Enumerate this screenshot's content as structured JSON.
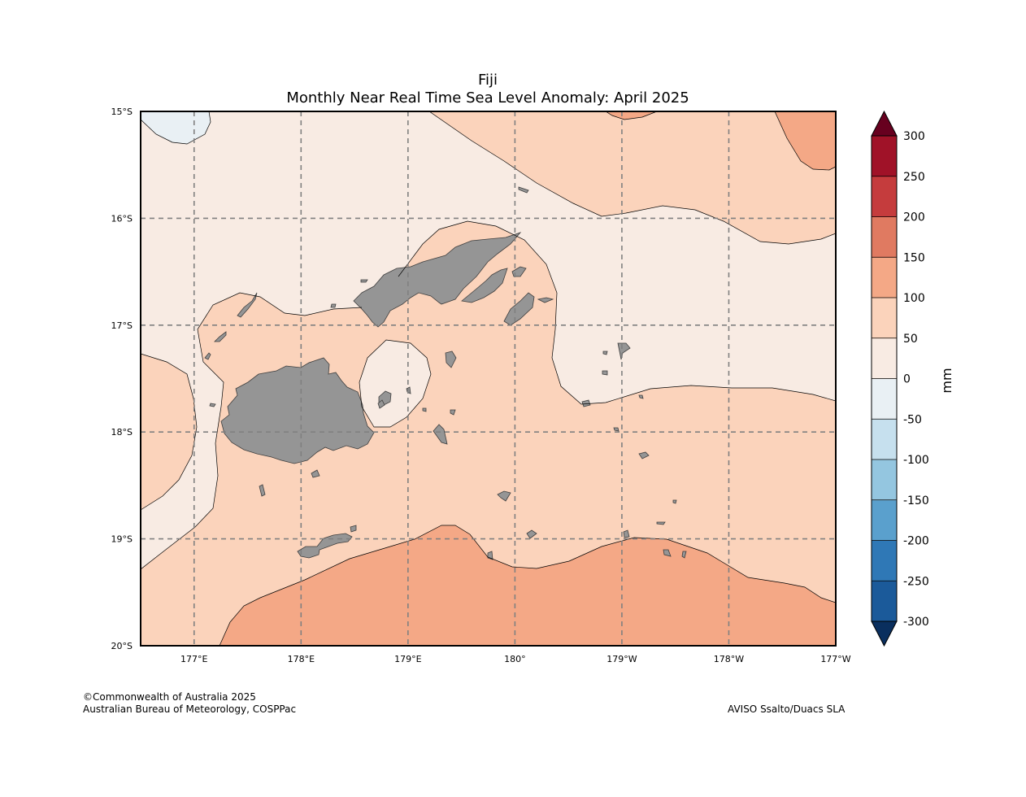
{
  "title": {
    "region": "Fiji",
    "subtitle": "Monthly Near Real Time Sea Level Anomaly: April 2025"
  },
  "map": {
    "lon_range": [
      176.5,
      183.0
    ],
    "lat_range": [
      -20,
      -15
    ],
    "lat_ticks": [
      {
        "value": -15,
        "label": "15°S"
      },
      {
        "value": -16,
        "label": "16°S"
      },
      {
        "value": -17,
        "label": "17°S"
      },
      {
        "value": -18,
        "label": "18°S"
      },
      {
        "value": -19,
        "label": "19°S"
      },
      {
        "value": -20,
        "label": "20°S"
      }
    ],
    "lon_ticks": [
      {
        "value": 177,
        "label": "177°E"
      },
      {
        "value": 178,
        "label": "178°E"
      },
      {
        "value": 179,
        "label": "179°E"
      },
      {
        "value": 180,
        "label": "180°"
      },
      {
        "value": 181,
        "label": "179°W"
      },
      {
        "value": 182,
        "label": "178°W"
      },
      {
        "value": 183,
        "label": "177°W"
      }
    ],
    "land_color": "#959595",
    "contour_fill_colors": {
      "-50_0": "#e9f0f4",
      "0_50": "#f8ebe3",
      "50_100": "#fbd3bb",
      "100_150": "#f4a886"
    }
  },
  "colorbar": {
    "unit": "mm",
    "levels": [
      -300,
      -250,
      -200,
      -150,
      -100,
      -50,
      0,
      50,
      100,
      150,
      200,
      250,
      300
    ],
    "labels": [
      "300",
      "250",
      "200",
      "150",
      "100",
      "50",
      "0",
      "-50",
      "-100",
      "-150",
      "-200",
      "-250",
      "-300"
    ],
    "colors": [
      "#1b5a9a",
      "#2f78b6",
      "#5aa0cd",
      "#94c6e0",
      "#c6e0ee",
      "#e9f0f4",
      "#f8ebe3",
      "#fbd3bb",
      "#f4a886",
      "#e07a61",
      "#c53c3d",
      "#a01228"
    ],
    "extend_min_color": "#0a2f5e",
    "extend_max_color": "#67001f"
  },
  "footer": {
    "copyright": "©Commonwealth of Australia 2025",
    "agency": "Australian Bureau of Meteorology, COSPPac",
    "source": "AVISO Ssalto/Duacs SLA"
  }
}
